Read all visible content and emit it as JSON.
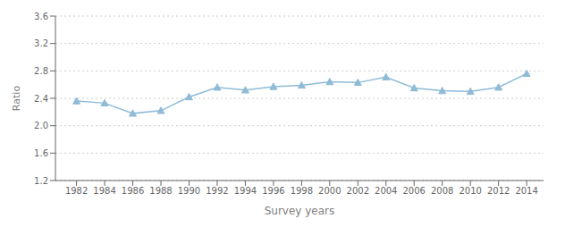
{
  "chart_data": {
    "type": "line",
    "x": [
      1982,
      1984,
      1986,
      1988,
      1990,
      1992,
      1994,
      1996,
      1998,
      2000,
      2002,
      2004,
      2006,
      2008,
      2010,
      2012,
      2014
    ],
    "values": [
      2.36,
      2.33,
      2.18,
      2.22,
      2.42,
      2.56,
      2.52,
      2.57,
      2.59,
      2.64,
      2.63,
      2.71,
      2.55,
      2.51,
      2.5,
      2.56,
      2.76
    ],
    "color": "#8FBBD6",
    "marker": "triangle",
    "xlabel": "Survey years",
    "ylabel": "Ratio",
    "xlim": [
      1980.5,
      2015.2
    ],
    "xticks": [
      1982,
      1984,
      1986,
      1988,
      1990,
      1992,
      1994,
      1996,
      1998,
      2000,
      2002,
      2004,
      2006,
      2008,
      2010,
      2012,
      2014
    ],
    "ylim": [
      1.2,
      3.6
    ],
    "yticks": [
      1.2,
      1.6,
      {
        "value": 2.0,
        "label": "2.0"
      },
      2.4,
      2.8,
      3.2,
      3.6
    ],
    "grid": "y"
  }
}
